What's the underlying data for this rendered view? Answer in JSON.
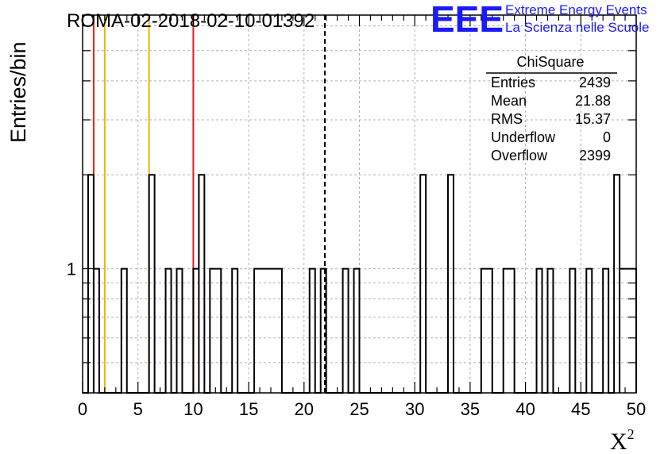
{
  "chart_data": {
    "type": "bar",
    "title": "ROMA-02-2018-02-10-01392",
    "xlabel": "X",
    "xlabel_superscript": "2",
    "ylabel": "Entries/bin",
    "xlim": [
      0,
      50
    ],
    "ylim": [
      0.4,
      6.5
    ],
    "y_log_scale": true,
    "grid": true,
    "bin_width": 0.5,
    "x_ticks": [
      0,
      5,
      10,
      15,
      20,
      25,
      30,
      35,
      40,
      45,
      50
    ],
    "y_tick_labels": [
      {
        "value": 1,
        "label": "1"
      }
    ],
    "bins": [
      {
        "x0": 0.5,
        "x1": 1.0,
        "value": 2
      },
      {
        "x0": 1.0,
        "x1": 1.5,
        "value": 1
      },
      {
        "x0": 3.5,
        "x1": 4.0,
        "value": 1
      },
      {
        "x0": 6.0,
        "x1": 6.5,
        "value": 2
      },
      {
        "x0": 7.5,
        "x1": 8.0,
        "value": 1
      },
      {
        "x0": 8.5,
        "x1": 9.0,
        "value": 1
      },
      {
        "x0": 10.0,
        "x1": 10.5,
        "value": 1
      },
      {
        "x0": 10.5,
        "x1": 11.0,
        "value": 2
      },
      {
        "x0": 11.5,
        "x1": 12.5,
        "value": 1
      },
      {
        "x0": 13.5,
        "x1": 14.0,
        "value": 1
      },
      {
        "x0": 15.5,
        "x1": 18.0,
        "value": 1
      },
      {
        "x0": 20.5,
        "x1": 21.0,
        "value": 1
      },
      {
        "x0": 21.5,
        "x1": 22.0,
        "value": 1
      },
      {
        "x0": 23.5,
        "x1": 24.0,
        "value": 1
      },
      {
        "x0": 24.5,
        "x1": 25.0,
        "value": 1
      },
      {
        "x0": 30.5,
        "x1": 31.0,
        "value": 2
      },
      {
        "x0": 33.0,
        "x1": 33.5,
        "value": 2
      },
      {
        "x0": 36.0,
        "x1": 37.0,
        "value": 1
      },
      {
        "x0": 38.0,
        "x1": 39.0,
        "value": 1
      },
      {
        "x0": 41.0,
        "x1": 41.5,
        "value": 1
      },
      {
        "x0": 42.0,
        "x1": 42.5,
        "value": 1
      },
      {
        "x0": 44.0,
        "x1": 44.5,
        "value": 1
      },
      {
        "x0": 45.5,
        "x1": 46.0,
        "value": 1
      },
      {
        "x0": 47.0,
        "x1": 47.5,
        "value": 1
      },
      {
        "x0": 48.0,
        "x1": 48.5,
        "value": 2
      },
      {
        "x0": 48.5,
        "x1": 50.0,
        "value": 1
      }
    ],
    "reference_lines": [
      {
        "x": 1.0,
        "color": "#e02020",
        "style": "solid"
      },
      {
        "x": 2.0,
        "color": "#f0b400",
        "style": "solid"
      },
      {
        "x": 6.0,
        "color": "#f0b400",
        "style": "solid"
      },
      {
        "x": 10.0,
        "color": "#e02020",
        "style": "solid"
      },
      {
        "x": 21.88,
        "color": "#000000",
        "style": "dashed"
      }
    ],
    "stats_box": {
      "title": "ChiSquare",
      "rows": [
        {
          "label": "Entries",
          "value": "2439"
        },
        {
          "label": "Mean",
          "value": "21.88"
        },
        {
          "label": "RMS",
          "value": "15.37"
        },
        {
          "label": "Underflow",
          "value": "0"
        },
        {
          "label": "Overflow",
          "value": "2399"
        }
      ]
    }
  },
  "logo": {
    "mark": "EEE",
    "line1": "Extreme Energy Events",
    "line2": "La Scienza nelle Scuole",
    "color": "#1a1aff"
  }
}
